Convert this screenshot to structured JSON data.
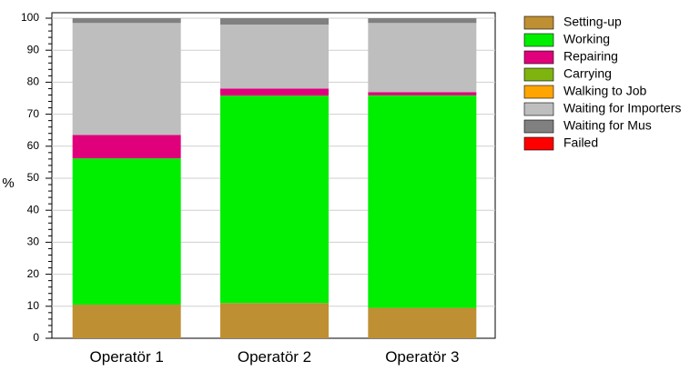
{
  "chart_data": {
    "type": "bar",
    "stacked": true,
    "title": "",
    "xlabel": "",
    "ylabel": "%",
    "ylim": [
      0,
      100
    ],
    "yticks": [
      0,
      10,
      20,
      30,
      40,
      50,
      60,
      70,
      80,
      90,
      100
    ],
    "grid": true,
    "legend_position": "right",
    "categories": [
      "Operatör 1",
      "Operatör 2",
      "Operatör 3"
    ],
    "series": [
      {
        "name": "Setting-up",
        "color": "#bf8f33",
        "values": [
          10.5,
          11.0,
          9.5
        ]
      },
      {
        "name": "Working",
        "color": "#00ee00",
        "values": [
          45.7,
          64.8,
          66.4
        ]
      },
      {
        "name": "Repairing",
        "color": "#e0007c",
        "values": [
          7.3,
          2.2,
          1.0
        ]
      },
      {
        "name": "Carrying",
        "color": "#7fb40f",
        "values": [
          0,
          0,
          0
        ]
      },
      {
        "name": "Walking to Job",
        "color": "#ffa500",
        "values": [
          0,
          0,
          0
        ]
      },
      {
        "name": "Waiting for Importers",
        "color": "#bebebe",
        "values": [
          35.0,
          20.0,
          21.6
        ]
      },
      {
        "name": "Waiting for Mus",
        "color": "#808080",
        "values": [
          1.5,
          2.0,
          1.5
        ]
      },
      {
        "name": "Failed",
        "color": "#ff0000",
        "values": [
          0,
          0,
          0
        ]
      }
    ]
  }
}
